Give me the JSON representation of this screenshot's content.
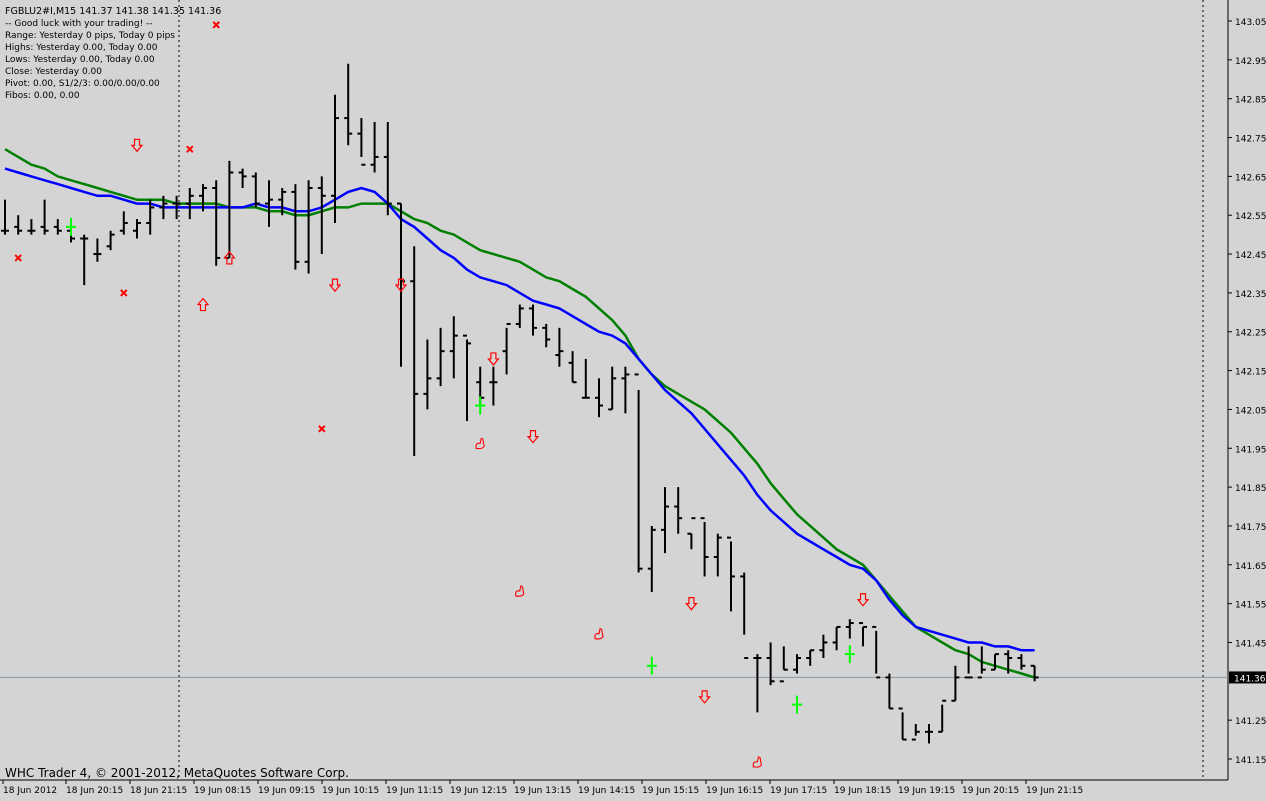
{
  "window": {
    "symbol_line": "FGBLU2#I,M15  141.37 141.38 141.35 141.36",
    "indicator_lines": [
      "-- Good luck with your trading! --",
      "Range: Yesterday 0 pips, Today 0 pips",
      "Highs: Yesterday 0.00, Today 0.00",
      "Lows:  Yesterday 0.00, Today 0.00",
      "Close: Yesterday 0.00",
      "Pivot: 0.00, S1/2/3: 0.00/0.00/0.00",
      "Fibos: 0.00, 0.00"
    ],
    "copyright": "WHC Trader 4, © 2001-2012, MetaQuotes Software Corp.",
    "current_price_label": "141.36"
  },
  "colors": {
    "background": "#d4d4d4",
    "bars": "#000000",
    "ma_fast": "#0000ff",
    "ma_slow": "#008000",
    "arrow": "#ff0000",
    "cross": "#ff0000",
    "signal_plus": "#00ff00",
    "current_price_line": "#8899aa"
  },
  "chart_data": {
    "type": "ohlc",
    "symbol": "FGBLU2#I",
    "timeframe": "M15",
    "ylim": [
      141.1,
      143.07
    ],
    "y_ticks": [
      "143.05",
      "142.95",
      "142.85",
      "142.75",
      "142.65",
      "142.55",
      "142.45",
      "142.35",
      "142.25",
      "142.15",
      "142.05",
      "141.95",
      "141.85",
      "141.75",
      "141.65",
      "141.55",
      "141.45",
      "141.36",
      "141.25",
      "141.15"
    ],
    "x_ticks": [
      "18 Jun 2012",
      "18 Jun 20:15",
      "18 Jun 21:15",
      "19 Jun 08:15",
      "19 Jun 09:15",
      "19 Jun 10:15",
      "19 Jun 11:15",
      "19 Jun 12:15",
      "19 Jun 13:15",
      "19 Jun 14:15",
      "19 Jun 15:15",
      "19 Jun 16:15",
      "19 Jun 17:15",
      "19 Jun 18:15",
      "19 Jun 19:15",
      "19 Jun 20:15",
      "19 Jun 21:15"
    ],
    "bars": [
      [
        142.51,
        142.59,
        142.5,
        142.51
      ],
      [
        142.52,
        142.55,
        142.5,
        142.51
      ],
      [
        142.51,
        142.54,
        142.5,
        142.51
      ],
      [
        142.52,
        142.59,
        142.5,
        142.51
      ],
      [
        142.52,
        142.54,
        142.5,
        142.51
      ],
      [
        142.51,
        142.54,
        142.48,
        142.49
      ],
      [
        142.49,
        142.5,
        142.37,
        142.49
      ],
      [
        142.45,
        142.49,
        142.43,
        142.45
      ],
      [
        142.47,
        142.51,
        142.46,
        142.5
      ],
      [
        142.51,
        142.56,
        142.5,
        142.53
      ],
      [
        142.51,
        142.54,
        142.49,
        142.53
      ],
      [
        142.53,
        142.59,
        142.5,
        142.57
      ],
      [
        142.57,
        142.6,
        142.54,
        142.58
      ],
      [
        142.58,
        142.6,
        142.54,
        142.58
      ],
      [
        142.58,
        142.62,
        142.54,
        142.6
      ],
      [
        142.6,
        142.63,
        142.56,
        142.62
      ],
      [
        142.62,
        142.64,
        142.42,
        142.44
      ],
      [
        142.44,
        142.69,
        142.44,
        142.66
      ],
      [
        142.66,
        142.67,
        142.62,
        142.65
      ],
      [
        142.65,
        142.66,
        142.57,
        142.58
      ],
      [
        142.58,
        142.64,
        142.52,
        142.59
      ],
      [
        142.59,
        142.62,
        142.55,
        142.61
      ],
      [
        142.61,
        142.63,
        142.41,
        142.43
      ],
      [
        142.43,
        142.64,
        142.4,
        142.62
      ],
      [
        142.62,
        142.65,
        142.45,
        142.6
      ],
      [
        142.6,
        142.86,
        142.53,
        142.8
      ],
      [
        142.8,
        142.94,
        142.73,
        142.76
      ],
      [
        142.76,
        142.8,
        142.7,
        142.68
      ],
      [
        142.68,
        142.79,
        142.66,
        142.7
      ],
      [
        142.7,
        142.79,
        142.55,
        142.58
      ],
      [
        142.58,
        142.58,
        142.16,
        142.38
      ],
      [
        142.38,
        142.47,
        141.93,
        142.09
      ],
      [
        142.09,
        142.23,
        142.05,
        142.13
      ],
      [
        142.13,
        142.26,
        142.11,
        142.2
      ],
      [
        142.2,
        142.29,
        142.13,
        142.24
      ],
      [
        142.24,
        142.23,
        142.02,
        142.22
      ],
      [
        142.12,
        142.16,
        142.06,
        142.08
      ],
      [
        142.12,
        142.16,
        142.06,
        142.12
      ],
      [
        142.2,
        142.26,
        142.14,
        142.27
      ],
      [
        142.27,
        142.32,
        142.26,
        142.31
      ],
      [
        142.31,
        142.32,
        142.24,
        142.26
      ],
      [
        142.26,
        142.27,
        142.21,
        142.23
      ],
      [
        142.19,
        142.26,
        142.16,
        142.2
      ],
      [
        142.17,
        142.2,
        142.12,
        142.12
      ],
      [
        142.08,
        142.18,
        142.08,
        142.08
      ],
      [
        142.08,
        142.13,
        142.03,
        142.06
      ],
      [
        142.05,
        142.16,
        142.05,
        142.13
      ],
      [
        142.13,
        142.16,
        142.04,
        142.14
      ],
      [
        142.14,
        142.1,
        141.63,
        141.64
      ],
      [
        141.64,
        141.75,
        141.58,
        141.74
      ],
      [
        141.74,
        141.85,
        141.68,
        141.8
      ],
      [
        141.8,
        141.85,
        141.73,
        141.77
      ],
      [
        141.73,
        141.73,
        141.69,
        141.77
      ],
      [
        141.77,
        141.76,
        141.62,
        141.67
      ],
      [
        141.67,
        141.73,
        141.62,
        141.72
      ],
      [
        141.72,
        141.71,
        141.53,
        141.62
      ],
      [
        141.62,
        141.63,
        141.47,
        141.41
      ],
      [
        141.41,
        141.42,
        141.27,
        141.41
      ],
      [
        141.41,
        141.45,
        141.34,
        141.35
      ],
      [
        141.35,
        141.44,
        141.38,
        141.38
      ],
      [
        141.38,
        141.42,
        141.37,
        141.41
      ],
      [
        141.41,
        141.43,
        141.39,
        141.43
      ],
      [
        141.43,
        141.47,
        141.41,
        141.45
      ],
      [
        141.45,
        141.49,
        141.43,
        141.49
      ],
      [
        141.49,
        141.51,
        141.46,
        141.5
      ],
      [
        141.5,
        141.49,
        141.44,
        141.49
      ],
      [
        141.49,
        141.48,
        141.37,
        141.36
      ],
      [
        141.36,
        141.37,
        141.28,
        141.28
      ],
      [
        141.28,
        141.27,
        141.2,
        141.2
      ],
      [
        141.2,
        141.24,
        141.21,
        141.22
      ],
      [
        141.22,
        141.24,
        141.19,
        141.22
      ],
      [
        141.22,
        141.29,
        141.22,
        141.3
      ],
      [
        141.3,
        141.39,
        141.3,
        141.36
      ],
      [
        141.36,
        141.44,
        141.37,
        141.36
      ],
      [
        141.36,
        141.44,
        141.37,
        141.38
      ],
      [
        141.38,
        141.42,
        141.38,
        141.42
      ],
      [
        141.42,
        141.43,
        141.37,
        141.41
      ],
      [
        141.41,
        141.42,
        141.38,
        141.39
      ],
      [
        141.39,
        141.39,
        141.35,
        141.36
      ]
    ],
    "ma_fast": [
      142.67,
      142.66,
      142.65,
      142.64,
      142.63,
      142.62,
      142.61,
      142.6,
      142.6,
      142.59,
      142.58,
      142.58,
      142.57,
      142.57,
      142.57,
      142.57,
      142.57,
      142.57,
      142.57,
      142.58,
      142.57,
      142.57,
      142.56,
      142.56,
      142.57,
      142.59,
      142.61,
      142.62,
      142.61,
      142.58,
      142.54,
      142.52,
      142.49,
      142.46,
      142.44,
      142.41,
      142.39,
      142.38,
      142.37,
      142.35,
      142.33,
      142.32,
      142.31,
      142.29,
      142.27,
      142.25,
      142.24,
      142.22,
      142.18,
      142.14,
      142.1,
      142.07,
      142.04,
      142.0,
      141.96,
      141.92,
      141.88,
      141.83,
      141.79,
      141.76,
      141.73,
      141.71,
      141.69,
      141.67,
      141.65,
      141.64,
      141.61,
      141.56,
      141.52,
      141.49,
      141.48,
      141.47,
      141.46,
      141.45,
      141.45,
      141.44,
      141.44,
      141.43,
      141.43
    ],
    "ma_slow": [
      142.72,
      142.7,
      142.68,
      142.67,
      142.65,
      142.64,
      142.63,
      142.62,
      142.61,
      142.6,
      142.59,
      142.59,
      142.59,
      142.58,
      142.58,
      142.58,
      142.58,
      142.57,
      142.57,
      142.57,
      142.56,
      142.56,
      142.55,
      142.55,
      142.56,
      142.57,
      142.57,
      142.58,
      142.58,
      142.58,
      142.56,
      142.54,
      142.53,
      142.51,
      142.5,
      142.48,
      142.46,
      142.45,
      142.44,
      142.43,
      142.41,
      142.39,
      142.38,
      142.36,
      142.34,
      142.31,
      142.28,
      142.24,
      142.18,
      142.14,
      142.11,
      142.09,
      142.07,
      142.05,
      142.02,
      141.99,
      141.95,
      141.91,
      141.86,
      141.82,
      141.78,
      141.75,
      141.72,
      141.69,
      141.67,
      141.65,
      141.61,
      141.57,
      141.53,
      141.49,
      141.47,
      141.45,
      141.43,
      141.42,
      141.4,
      141.39,
      141.38,
      141.37,
      141.36
    ],
    "down_arrows": [
      [
        10,
        142.73
      ],
      [
        25,
        142.37
      ],
      [
        30,
        142.37
      ],
      [
        37,
        142.18
      ],
      [
        40,
        141.98
      ],
      [
        52,
        141.55
      ],
      [
        53,
        141.31
      ],
      [
        65,
        141.56
      ]
    ],
    "up_arrows": [
      [
        15,
        142.32
      ],
      [
        17,
        142.44
      ]
    ],
    "crosses": [
      [
        1,
        142.44
      ],
      [
        9,
        142.35
      ],
      [
        14,
        142.72
      ],
      [
        16,
        143.04
      ],
      [
        24,
        142.0
      ]
    ],
    "hand_markers": [
      [
        36,
        141.96
      ],
      [
        39,
        141.58
      ],
      [
        45,
        141.47
      ],
      [
        57,
        141.14
      ]
    ],
    "signal_plus": [
      [
        5,
        142.52
      ],
      [
        36,
        142.06
      ],
      [
        49,
        141.39
      ],
      [
        60,
        141.29
      ],
      [
        64,
        141.42
      ]
    ],
    "current_price": 141.36
  }
}
